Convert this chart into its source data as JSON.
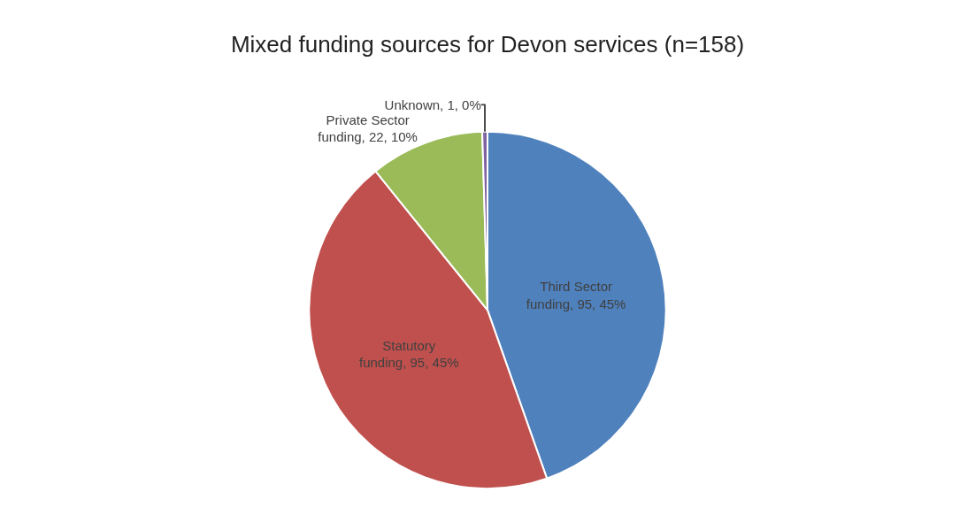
{
  "chart_data": {
    "type": "pie",
    "title": "Mixed funding sources for Devon services (n=158)",
    "categories": [
      "Third Sector funding",
      "Statutory funding",
      "Private Sector funding",
      "Unknown"
    ],
    "values": [
      95,
      95,
      22,
      1
    ],
    "value_labels": [
      "95, 45%",
      "95, 45%",
      "22, 10%",
      "1, 0%"
    ],
    "colors": [
      "#4f81bd",
      "#c0504d",
      "#9bbb59",
      "#8064a2"
    ],
    "legend": false
  }
}
